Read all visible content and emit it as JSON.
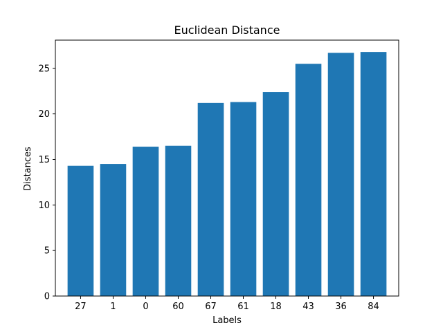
{
  "chart_data": {
    "type": "bar",
    "title": "Euclidean Distance",
    "xlabel": "Labels",
    "ylabel": "Distances",
    "categories": [
      "27",
      "1",
      "0",
      "60",
      "67",
      "61",
      "18",
      "43",
      "36",
      "84"
    ],
    "values": [
      14.3,
      14.5,
      16.4,
      16.5,
      21.2,
      21.3,
      22.4,
      25.5,
      26.7,
      26.8
    ],
    "ylim": [
      0,
      28.1
    ],
    "yticks": [
      0,
      5,
      10,
      15,
      20,
      25
    ],
    "ytick_labels": [
      "0",
      "5",
      "10",
      "15",
      "20",
      "25"
    ],
    "grid": false,
    "colors": {
      "bar": "#1f77b4"
    }
  }
}
